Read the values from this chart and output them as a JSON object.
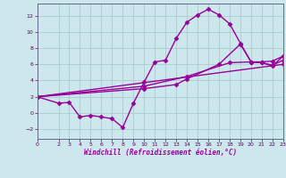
{
  "bg_color": "#cce8ec",
  "grid_color": "#aacccc",
  "line_color": "#990099",
  "marker": "D",
  "markersize": 2.5,
  "linewidth": 1.0,
  "xlabel": "Windchill (Refroidissement éolien,°C)",
  "xlim": [
    0,
    23
  ],
  "ylim": [
    -3.2,
    13.5
  ],
  "yticks": [
    -2,
    0,
    2,
    4,
    6,
    8,
    10,
    12
  ],
  "xticks": [
    0,
    2,
    3,
    4,
    5,
    6,
    7,
    8,
    9,
    10,
    11,
    12,
    13,
    14,
    15,
    16,
    17,
    18,
    19,
    20,
    21,
    22,
    23
  ],
  "series": [
    {
      "x": [
        0,
        2,
        3,
        4,
        5,
        6,
        7,
        8,
        9,
        10,
        11,
        12,
        13,
        14,
        15,
        16,
        17,
        18,
        19,
        20,
        21,
        22,
        23
      ],
      "y": [
        2.0,
        1.2,
        1.3,
        -0.5,
        -0.3,
        -0.5,
        -0.7,
        -1.8,
        1.2,
        3.8,
        6.3,
        6.5,
        9.2,
        11.2,
        12.1,
        12.8,
        12.1,
        11.0,
        8.6,
        6.3,
        6.2,
        5.8,
        7.0
      ]
    },
    {
      "x": [
        0,
        10,
        13,
        14,
        17,
        19,
        20,
        21,
        22,
        23
      ],
      "y": [
        2.0,
        3.0,
        3.5,
        4.2,
        6.0,
        8.5,
        6.3,
        6.2,
        5.9,
        6.5
      ]
    },
    {
      "x": [
        0,
        10,
        14,
        18,
        20,
        21,
        22,
        23
      ],
      "y": [
        2.0,
        3.3,
        4.5,
        6.2,
        6.3,
        6.3,
        6.4,
        7.0
      ]
    },
    {
      "x": [
        0,
        23
      ],
      "y": [
        2.0,
        6.0
      ]
    }
  ]
}
